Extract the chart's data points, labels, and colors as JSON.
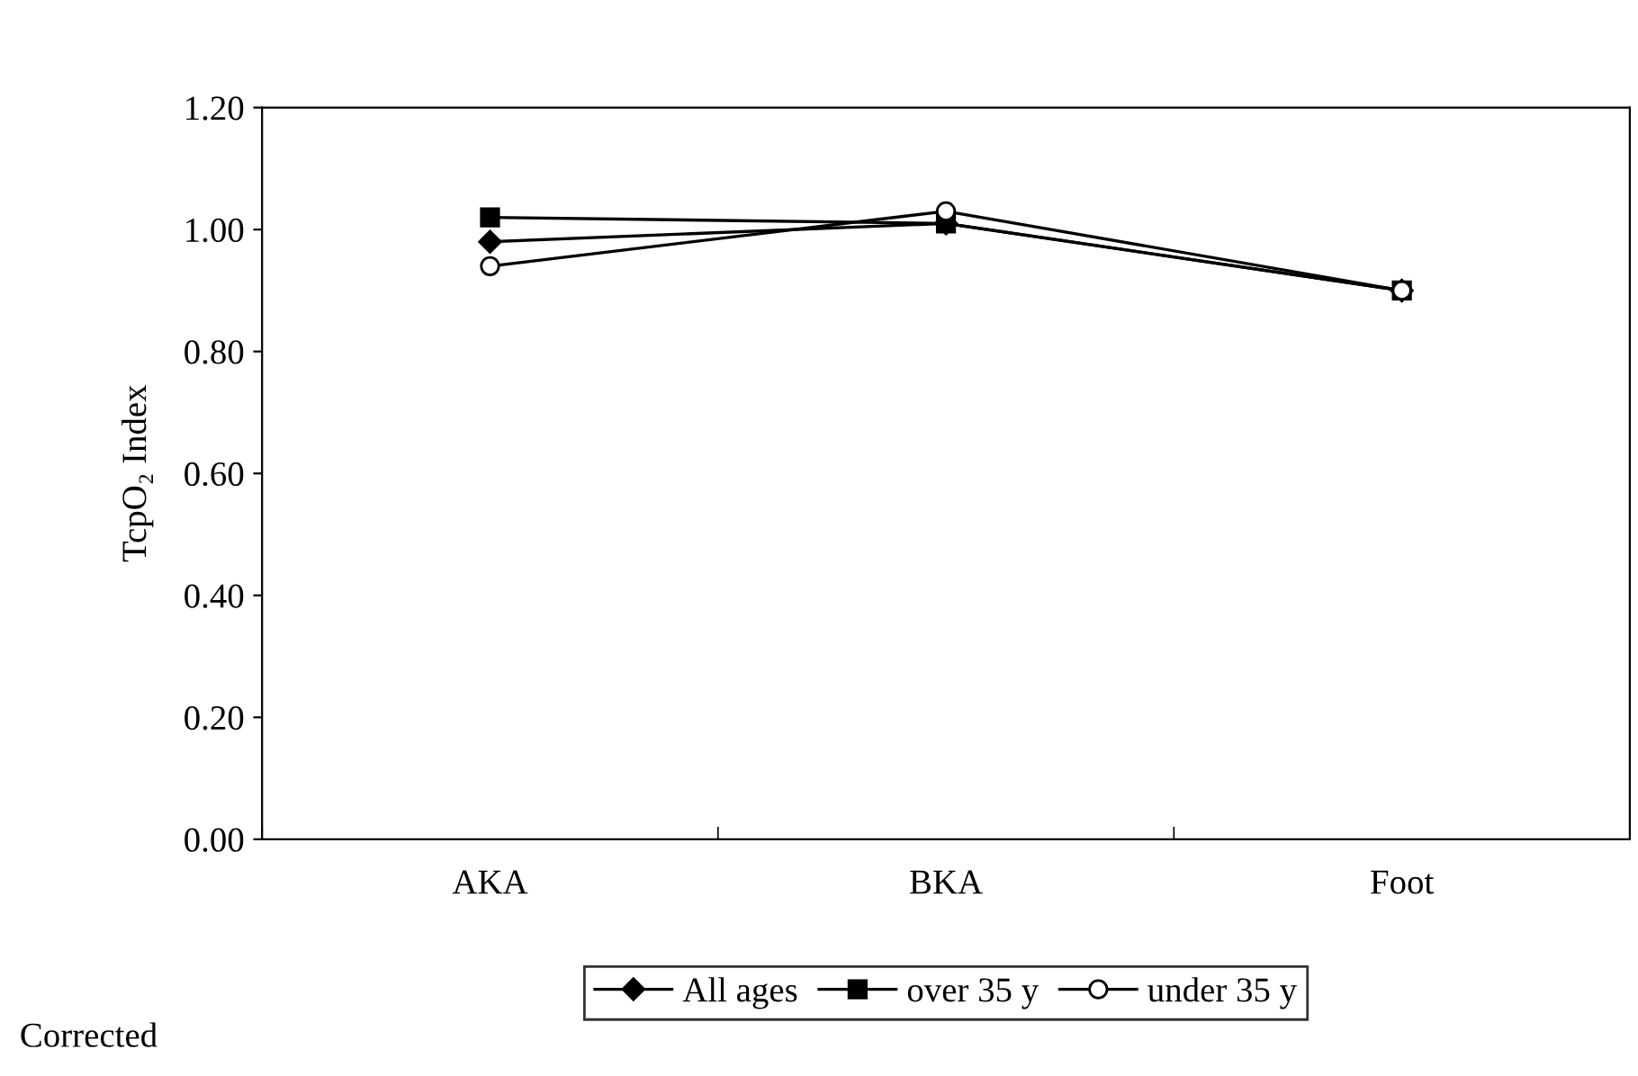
{
  "chart_data": {
    "type": "line",
    "ylabel": "TcpO₂ Index",
    "categories": [
      "AKA",
      "BKA",
      "Foot"
    ],
    "series": [
      {
        "name": "All ages",
        "color": "#000000",
        "marker": "diamond",
        "values": [
          0.98,
          1.01,
          0.9
        ]
      },
      {
        "name": "over 35 y",
        "color": "#000000",
        "marker": "square",
        "values": [
          1.02,
          1.01,
          0.9
        ]
      },
      {
        "name": "under 35 y",
        "color": "#000000",
        "marker": "circle",
        "values": [
          0.94,
          1.03,
          0.9
        ]
      }
    ],
    "ylim": [
      0,
      1.2
    ],
    "yticks": [
      {
        "value": 0,
        "label": "0.00"
      },
      {
        "value": 0.2,
        "label": "0.20"
      },
      {
        "value": 0.4,
        "label": "0.40"
      },
      {
        "value": 0.6,
        "label": "0.60"
      },
      {
        "value": 0.8,
        "label": "0.80"
      },
      {
        "value": 1.0,
        "label": "1.00"
      },
      {
        "value": 1.2,
        "label": "1.20"
      }
    ],
    "grid": false,
    "legend": "bottom",
    "line_style": "solid",
    "annotations": [
      "Corrected"
    ]
  }
}
